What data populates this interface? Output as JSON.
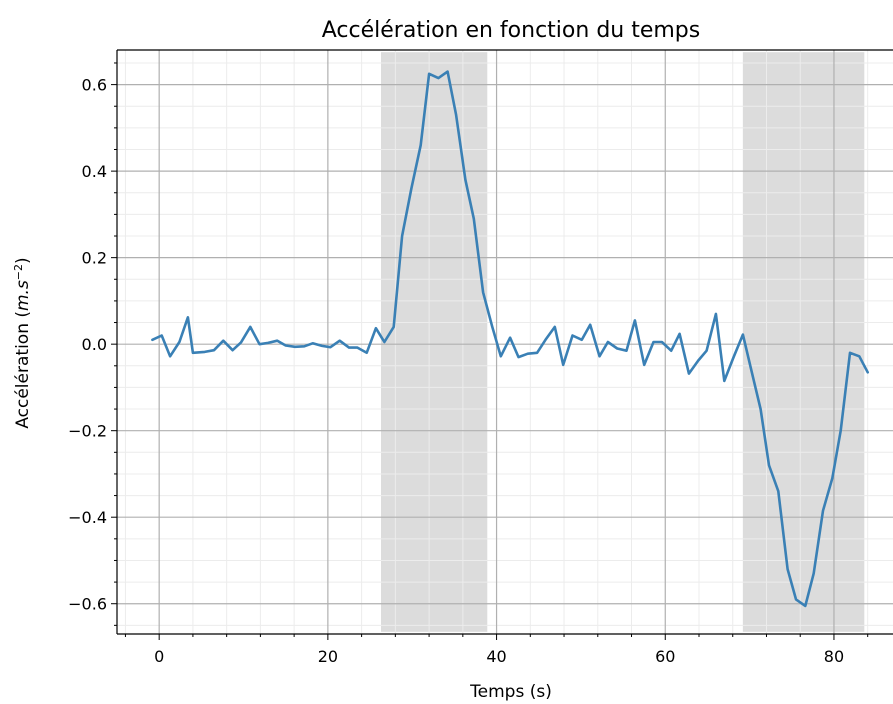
{
  "chart_data": {
    "type": "line",
    "title": "Accélération en fonction du temps",
    "xlabel": "Temps (s)",
    "ylabel_prefix": "Accélération (",
    "ylabel_math": "m.s",
    "ylabel_exp": "−2",
    "ylabel_suffix": ")",
    "xlim": [
      -5,
      87
    ],
    "ylim": [
      -0.67,
      0.68
    ],
    "xticks": [
      0,
      20,
      40,
      60,
      80
    ],
    "xtick_labels": [
      "0",
      "20",
      "40",
      "60",
      "80"
    ],
    "yticks": [
      -0.6,
      -0.4,
      -0.2,
      0.0,
      0.2,
      0.4,
      0.6
    ],
    "ytick_labels": [
      "−0.6",
      "−0.4",
      "−0.2",
      "0.0",
      "0.2",
      "0.4",
      "0.6"
    ],
    "grid": true,
    "minor_grid": true,
    "colors": {
      "line": "#3a80b5",
      "shade": "#dcdcdc",
      "grid_major": "#b0b0b0",
      "grid_minor": "#ececec"
    },
    "shaded_regions": [
      [
        26.3,
        38.9
      ],
      [
        69.2,
        83.6
      ]
    ],
    "series": [
      {
        "x": [
          -0.8,
          0.3,
          1.3,
          2.4,
          3.4,
          4.0,
          5.4,
          6.5,
          7.6,
          8.7,
          9.7,
          10.8,
          11.9,
          12.9,
          14.0,
          15.0,
          16.1,
          17.2,
          18.2,
          19.3,
          20.3,
          21.4,
          22.5,
          23.5,
          24.6,
          25.7,
          26.7,
          27.8,
          28.8,
          29.9,
          31.0,
          32.0,
          33.1,
          34.2,
          35.2,
          36.3,
          37.3,
          38.4,
          39.5,
          40.5,
          41.6,
          42.6,
          43.7,
          44.8,
          45.8,
          46.9,
          47.9,
          49.0,
          50.1,
          51.1,
          52.2,
          53.2,
          54.3,
          55.4,
          56.4,
          57.5,
          58.6,
          59.6,
          60.7,
          61.7,
          62.8,
          63.9,
          64.9,
          66.0,
          67.0,
          68.1,
          69.2,
          70.2,
          71.3,
          72.3,
          73.4,
          74.5,
          75.5,
          76.6,
          77.6,
          78.7,
          79.8,
          80.8,
          81.9,
          83.0,
          84.0
        ],
        "y": [
          0.01,
          0.02,
          -0.028,
          0.005,
          0.062,
          -0.02,
          -0.018,
          -0.014,
          0.008,
          -0.014,
          0.004,
          0.04,
          0.0,
          0.003,
          0.008,
          -0.003,
          -0.006,
          -0.005,
          0.002,
          -0.004,
          -0.007,
          0.008,
          -0.008,
          -0.008,
          -0.02,
          0.037,
          0.005,
          0.04,
          0.25,
          0.36,
          0.46,
          0.625,
          0.615,
          0.63,
          0.53,
          0.38,
          0.29,
          0.12,
          0.04,
          -0.028,
          0.015,
          -0.03,
          -0.022,
          -0.02,
          0.01,
          0.04,
          -0.048,
          0.02,
          0.01,
          0.045,
          -0.028,
          0.005,
          -0.01,
          -0.015,
          0.055,
          -0.048,
          0.005,
          0.005,
          -0.015,
          0.024,
          -0.068,
          -0.038,
          -0.015,
          0.07,
          -0.085,
          -0.03,
          0.022,
          -0.06,
          -0.15,
          -0.28,
          -0.34,
          -0.52,
          -0.59,
          -0.605,
          -0.53,
          -0.385,
          -0.31,
          -0.2,
          -0.02,
          -0.028,
          -0.065
        ]
      }
    ]
  }
}
